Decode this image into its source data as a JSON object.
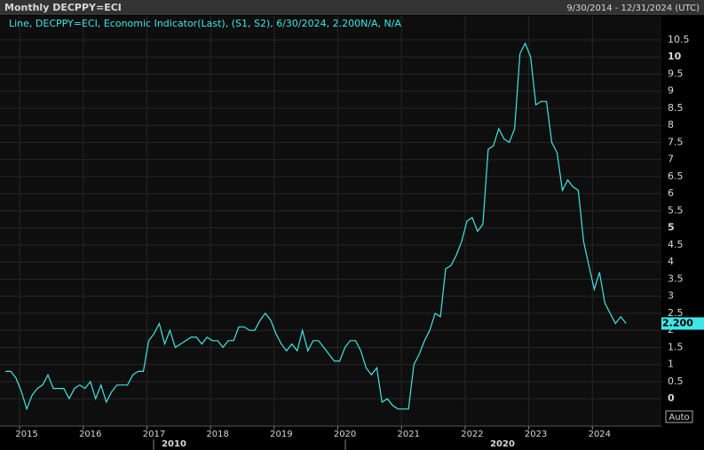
{
  "chart_data": {
    "type": "line",
    "title": "Monthly DECPPY=ECI",
    "date_range": "9/30/2014 - 12/31/2024 (UTC)",
    "x": [
      2014.667,
      2014.75,
      2014.833,
      2014.917,
      2015.0,
      2015.083,
      2015.167,
      2015.25,
      2015.333,
      2015.417,
      2015.5,
      2015.583,
      2015.667,
      2015.75,
      2015.833,
      2015.917,
      2016.0,
      2016.083,
      2016.167,
      2016.25,
      2016.333,
      2016.417,
      2016.5,
      2016.583,
      2016.667,
      2016.75,
      2016.833,
      2016.917,
      2017.0,
      2017.083,
      2017.167,
      2017.25,
      2017.333,
      2017.417,
      2017.5,
      2017.583,
      2017.667,
      2017.75,
      2017.833,
      2017.917,
      2018.0,
      2018.083,
      2018.167,
      2018.25,
      2018.333,
      2018.417,
      2018.5,
      2018.583,
      2018.667,
      2018.75,
      2018.833,
      2018.917,
      2019.0,
      2019.083,
      2019.167,
      2019.25,
      2019.333,
      2019.417,
      2019.5,
      2019.583,
      2019.667,
      2019.75,
      2019.833,
      2019.917,
      2020.0,
      2020.083,
      2020.167,
      2020.25,
      2020.333,
      2020.417,
      2020.5,
      2020.583,
      2020.667,
      2020.75,
      2020.833,
      2020.917,
      2021.0,
      2021.083,
      2021.167,
      2021.25,
      2021.333,
      2021.417,
      2021.5,
      2021.583,
      2021.667,
      2021.75,
      2021.833,
      2021.917,
      2022.0,
      2022.083,
      2022.167,
      2022.25,
      2022.333,
      2022.417,
      2022.5,
      2022.583,
      2022.667,
      2022.75,
      2022.833,
      2022.917,
      2023.0,
      2023.083,
      2023.167,
      2023.25,
      2023.333,
      2023.417,
      2023.5,
      2023.583,
      2023.667,
      2023.75,
      2023.833,
      2023.917,
      2024.0,
      2024.083,
      2024.167,
      2024.25,
      2024.333,
      2024.417
    ],
    "series": [
      {
        "name": "Line, DECPPY=ECI, Economic Indicator(Last), (S1, S2), 6/30/2024, 2.200N/A, N/A",
        "color": "#3ee6e6",
        "values": [
          0.8,
          0.8,
          0.6,
          0.2,
          -0.3,
          0.1,
          0.3,
          0.4,
          0.7,
          0.3,
          0.3,
          0.3,
          0.0,
          0.3,
          0.4,
          0.3,
          0.5,
          0.0,
          0.4,
          -0.1,
          0.2,
          0.4,
          0.4,
          0.4,
          0.7,
          0.8,
          0.8,
          1.7,
          1.9,
          2.2,
          1.6,
          2.0,
          1.5,
          1.6,
          1.7,
          1.8,
          1.8,
          1.6,
          1.8,
          1.7,
          1.7,
          1.5,
          1.7,
          1.7,
          2.1,
          2.1,
          2.0,
          2.0,
          2.3,
          2.5,
          2.3,
          1.9,
          1.6,
          1.4,
          1.6,
          1.4,
          2.0,
          1.4,
          1.7,
          1.7,
          1.5,
          1.3,
          1.1,
          1.1,
          1.5,
          1.7,
          1.7,
          1.4,
          0.9,
          0.7,
          0.9,
          -0.1,
          0.0,
          -0.2,
          -0.3,
          -0.3,
          -0.3,
          1.0,
          1.3,
          1.7,
          2.0,
          2.5,
          2.4,
          3.8,
          3.9,
          4.2,
          4.6,
          5.2,
          5.3,
          4.9,
          5.1,
          7.3,
          7.4,
          7.9,
          7.6,
          7.5,
          7.9,
          10.1,
          10.4,
          10.0,
          8.6,
          8.7,
          8.7,
          7.5,
          7.2,
          6.1,
          6.4,
          6.2,
          6.1,
          4.6,
          3.9,
          3.2,
          3.7,
          2.8,
          2.5,
          2.2,
          2.4,
          2.2
        ]
      }
    ],
    "last_value": {
      "value": 2.2,
      "label": "2.200"
    },
    "xlim": [
      2014.58,
      2025.0
    ],
    "xticks": [
      2015,
      2016,
      2017,
      2018,
      2019,
      2020,
      2021,
      2022,
      2023,
      2024
    ],
    "decade_labels": [
      "2010",
      "2020"
    ],
    "ylim": [
      -0.8,
      11.2
    ],
    "yticks": [
      0,
      0.5,
      1,
      1.5,
      2,
      2.5,
      3,
      3.5,
      4,
      4.5,
      5,
      5.5,
      6,
      6.5,
      7,
      7.5,
      8,
      8.5,
      9,
      9.5,
      10,
      10.5
    ],
    "grid": true,
    "scale_button": "Auto"
  }
}
